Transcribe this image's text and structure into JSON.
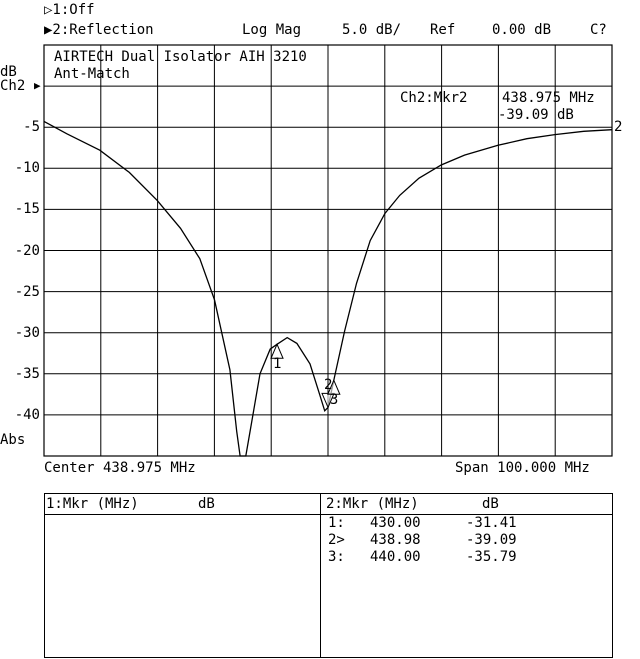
{
  "header": {
    "ch1": "▷1:Off",
    "ch2": "▶2:Reflection",
    "format": "Log Mag",
    "scale": "5.0 dB/",
    "ref_label": "Ref",
    "ref_value": "0.00 dB",
    "cal_status": "C?"
  },
  "chart_data": {
    "type": "line",
    "title": "AIRTECH Dual Isolator AIH 3210",
    "subtitle": "Ant-Match",
    "ylabel": "dB",
    "channel_label": "Ch2",
    "y_format_label": "Abs",
    "ylim": [
      -45,
      5
    ],
    "xlim": [
      388.975,
      488.975
    ],
    "grid": true,
    "y_ticks": [
      -5,
      -10,
      -15,
      -20,
      -25,
      -30,
      -35,
      -40
    ],
    "x_left_label": "Center 438.975 MHz",
    "x_right_label": "Span 100.000 MHz",
    "trace_color": "#000000",
    "trace_end_label": "2",
    "series": [
      {
        "x": [
          388.975,
          393.0,
          398.8,
          404.0,
          408.9,
          413.0,
          416.4,
          419.0,
          421.7,
          422.9,
          423.5,
          424.5,
          425.5,
          427.0,
          428.8,
          430.0,
          431.8,
          433.5,
          435.8,
          437.5,
          438.4,
          438.98,
          440.0,
          441.9,
          444.0,
          446.4,
          449.0,
          451.6,
          455.0,
          458.9,
          463.0,
          468.9,
          474.0,
          478.9,
          484.0,
          488.975
        ],
        "y": [
          -4.3,
          -5.8,
          -7.8,
          -10.5,
          -13.9,
          -17.3,
          -21.0,
          -26.0,
          -34.5,
          -42.0,
          -45.0,
          -45.0,
          -41.0,
          -35.0,
          -32.0,
          -31.41,
          -30.6,
          -31.3,
          -33.8,
          -37.5,
          -39.5,
          -39.09,
          -35.79,
          -29.8,
          -24.0,
          -18.8,
          -15.5,
          -13.3,
          -11.2,
          -9.6,
          -8.4,
          -7.2,
          -6.4,
          -5.9,
          -5.5,
          -5.3
        ]
      }
    ],
    "markers_on_trace": [
      {
        "label": "1",
        "x": 430.0,
        "y": -31.41,
        "symbol": "triangle-up"
      },
      {
        "label": "2",
        "x": 438.98,
        "y": -39.09,
        "symbol": "triangle-down"
      },
      {
        "label": "3",
        "x": 440.0,
        "y": -35.79,
        "symbol": "triangle-up"
      }
    ],
    "active_marker": {
      "label": "Ch2:Mkr2",
      "freq": "438.975 MHz",
      "value": "-39.09 dB"
    }
  },
  "marker_table": {
    "ch1": {
      "header_mkr": "1:Mkr (MHz)",
      "header_unit": "dB",
      "rows": []
    },
    "ch2": {
      "header_mkr": "2:Mkr (MHz)",
      "header_unit": "dB",
      "rows": [
        {
          "id": "1:",
          "freq": "430.00",
          "value": "-31.41"
        },
        {
          "id": "2>",
          "freq": "438.98",
          "value": "-39.09"
        },
        {
          "id": "3:",
          "freq": "440.00",
          "value": "-35.79"
        }
      ]
    }
  }
}
